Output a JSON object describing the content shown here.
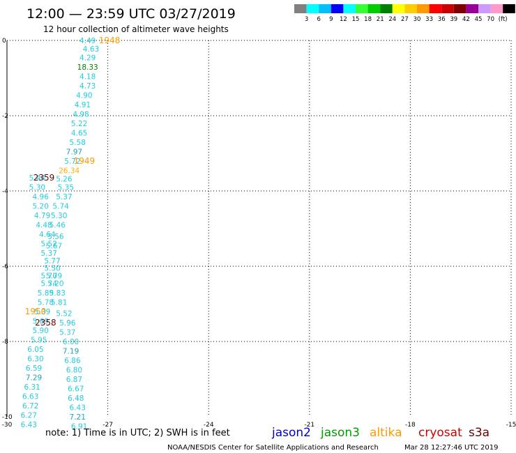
{
  "header": {
    "title": "12:00 — 23:59 UTC 03/27/2019",
    "subtitle": "12 hour collection of altimeter wave heights"
  },
  "legend": {
    "colors": [
      "#808080",
      "#00ffff",
      "#00bfff",
      "#0000ff",
      "#00ffff",
      "#33ff33",
      "#00cc00",
      "#008000",
      "#ffff00",
      "#ffcc00",
      "#ff9900",
      "#ff0000",
      "#cc0000",
      "#800000",
      "#990099",
      "#cc99ff",
      "#ff99cc",
      "#000000"
    ],
    "labels": [
      "3",
      "6",
      "9",
      "12",
      "15",
      "18",
      "21",
      "24",
      "27",
      "30",
      "33",
      "36",
      "39",
      "42",
      "45",
      "70",
      "(ft)"
    ]
  },
  "notes": {
    "note_text": "note: 1) Time is in UTC; 2) SWH is in feet",
    "satellites": [
      {
        "name": "jason2",
        "color": "#0000cc"
      },
      {
        "name": "jason3",
        "color": "#009900"
      },
      {
        "name": "altika",
        "color": "#ff9900"
      },
      {
        "name": "cryosat",
        "color": "#cc0000"
      },
      {
        "name": "s3a",
        "color": "#660000"
      }
    ],
    "footer_left": "NOAA/NESDIS Center for Satellite Applications and Research",
    "footer_right": "Mar 28 12:27:46 UTC 2019"
  },
  "chart_data": {
    "type": "scatter",
    "title": "12:00 — 23:59 UTC 03/27/2019",
    "subtitle": "12 hour collection of altimeter wave heights",
    "xlabel": "",
    "ylabel": "",
    "xlim": [
      -30,
      -15
    ],
    "ylim": [
      -10,
      0
    ],
    "x_ticks": [
      -30,
      -27,
      -24,
      -21,
      -18,
      -15
    ],
    "y_ticks": [
      0,
      -2,
      -4,
      -6,
      -8,
      -10
    ],
    "grid": true,
    "points": [
      {
        "x": -27.6,
        "y": 0.0,
        "v": "4.49",
        "color": "#22ccdd"
      },
      {
        "x": -27.5,
        "y": -0.22,
        "v": "4.63",
        "color": "#22ccdd"
      },
      {
        "x": -27.6,
        "y": -0.45,
        "v": "4.29",
        "color": "#22ccdd"
      },
      {
        "x": -27.6,
        "y": -0.7,
        "v": "18.33",
        "color": "#008000"
      },
      {
        "x": -27.6,
        "y": -0.95,
        "v": "4.18",
        "color": "#22ccdd"
      },
      {
        "x": -27.6,
        "y": -1.2,
        "v": "4.73",
        "color": "#22ccdd"
      },
      {
        "x": -27.7,
        "y": -1.45,
        "v": "4.90",
        "color": "#22ccdd"
      },
      {
        "x": -27.75,
        "y": -1.7,
        "v": "4.91",
        "color": "#22ccdd"
      },
      {
        "x": -27.8,
        "y": -1.95,
        "v": "4.98",
        "color": "#22ccdd"
      },
      {
        "x": -27.85,
        "y": -2.2,
        "v": "5.22",
        "color": "#22ccdd"
      },
      {
        "x": -27.85,
        "y": -2.45,
        "v": "4.65",
        "color": "#22ccdd"
      },
      {
        "x": -27.9,
        "y": -2.7,
        "v": "5.58",
        "color": "#22ccdd"
      },
      {
        "x": -28.0,
        "y": -2.95,
        "v": "7.97",
        "color": "#1aa3b8"
      },
      {
        "x": -28.05,
        "y": -3.2,
        "v": "5.72",
        "color": "#22ccdd"
      },
      {
        "x": -28.15,
        "y": -3.45,
        "v": "26.34",
        "color": "#ffaa00"
      },
      {
        "x": -29.1,
        "y": -3.65,
        "v": "5.44",
        "color": "#22ccdd"
      },
      {
        "x": -28.3,
        "y": -3.68,
        "v": "5.26",
        "color": "#22ccdd"
      },
      {
        "x": -29.1,
        "y": -3.9,
        "v": "5.30",
        "color": "#22ccdd"
      },
      {
        "x": -28.25,
        "y": -3.9,
        "v": "5.35",
        "color": "#22ccdd"
      },
      {
        "x": -29.0,
        "y": -4.15,
        "v": "4.96",
        "color": "#22ccdd"
      },
      {
        "x": -28.3,
        "y": -4.15,
        "v": "5.37",
        "color": "#22ccdd"
      },
      {
        "x": -29.0,
        "y": -4.4,
        "v": "5.20",
        "color": "#22ccdd"
      },
      {
        "x": -28.4,
        "y": -4.4,
        "v": "5.74",
        "color": "#22ccdd"
      },
      {
        "x": -28.95,
        "y": -4.65,
        "v": "4.79",
        "color": "#22ccdd"
      },
      {
        "x": -28.45,
        "y": -4.65,
        "v": "5.30",
        "color": "#22ccdd"
      },
      {
        "x": -28.9,
        "y": -4.9,
        "v": "4.48",
        "color": "#22ccdd"
      },
      {
        "x": -28.5,
        "y": -4.9,
        "v": "5.46",
        "color": "#22ccdd"
      },
      {
        "x": -28.8,
        "y": -5.15,
        "v": "4.64",
        "color": "#22ccdd"
      },
      {
        "x": -28.55,
        "y": -5.2,
        "v": "5.56",
        "color": "#22ccdd"
      },
      {
        "x": -28.75,
        "y": -5.4,
        "v": "5.52",
        "color": "#22ccdd"
      },
      {
        "x": -28.6,
        "y": -5.45,
        "v": "5.67",
        "color": "#22ccdd"
      },
      {
        "x": -28.75,
        "y": -5.65,
        "v": "5.37",
        "color": "#22ccdd"
      },
      {
        "x": -28.65,
        "y": -5.85,
        "v": "5.77",
        "color": "#22ccdd"
      },
      {
        "x": -28.65,
        "y": -6.05,
        "v": "5.50",
        "color": "#22ccdd"
      },
      {
        "x": -28.75,
        "y": -6.25,
        "v": "5.70",
        "color": "#22ccdd"
      },
      {
        "x": -28.6,
        "y": -6.25,
        "v": "5.79",
        "color": "#22ccdd"
      },
      {
        "x": -28.75,
        "y": -6.45,
        "v": "5.74",
        "color": "#22ccdd"
      },
      {
        "x": -28.55,
        "y": -6.45,
        "v": "5.20",
        "color": "#22ccdd"
      },
      {
        "x": -28.85,
        "y": -6.7,
        "v": "5.89",
        "color": "#22ccdd"
      },
      {
        "x": -28.5,
        "y": -6.7,
        "v": "5.83",
        "color": "#22ccdd"
      },
      {
        "x": -28.85,
        "y": -6.95,
        "v": "5.78",
        "color": "#22ccdd"
      },
      {
        "x": -28.45,
        "y": -6.95,
        "v": "5.81",
        "color": "#22ccdd"
      },
      {
        "x": -28.95,
        "y": -7.2,
        "v": "5.39",
        "color": "#22ccdd"
      },
      {
        "x": -28.3,
        "y": -7.25,
        "v": "5.52",
        "color": "#22ccdd"
      },
      {
        "x": -29.0,
        "y": -7.45,
        "v": "5.69",
        "color": "#22ccdd"
      },
      {
        "x": -28.2,
        "y": -7.5,
        "v": "5.96",
        "color": "#22ccdd"
      },
      {
        "x": -29.0,
        "y": -7.7,
        "v": "5.90",
        "color": "#22ccdd"
      },
      {
        "x": -28.2,
        "y": -7.75,
        "v": "5.37",
        "color": "#22ccdd"
      },
      {
        "x": -29.05,
        "y": -7.95,
        "v": "5.95",
        "color": "#22ccdd"
      },
      {
        "x": -28.1,
        "y": -8.0,
        "v": "6.00",
        "color": "#22ccdd"
      },
      {
        "x": -29.15,
        "y": -8.2,
        "v": "6.05",
        "color": "#22ccdd"
      },
      {
        "x": -28.1,
        "y": -8.25,
        "v": "7.19",
        "color": "#1aa3b8"
      },
      {
        "x": -29.15,
        "y": -8.45,
        "v": "6.30",
        "color": "#22ccdd"
      },
      {
        "x": -28.05,
        "y": -8.5,
        "v": "6.86",
        "color": "#22ccdd"
      },
      {
        "x": -29.2,
        "y": -8.7,
        "v": "6.59",
        "color": "#22ccdd"
      },
      {
        "x": -28.0,
        "y": -8.75,
        "v": "6.80",
        "color": "#22ccdd"
      },
      {
        "x": -29.2,
        "y": -8.95,
        "v": "7.29",
        "color": "#1aa3b8"
      },
      {
        "x": -28.0,
        "y": -9.0,
        "v": "6.87",
        "color": "#22ccdd"
      },
      {
        "x": -29.25,
        "y": -9.2,
        "v": "6.31",
        "color": "#22ccdd"
      },
      {
        "x": -27.95,
        "y": -9.25,
        "v": "6.67",
        "color": "#22ccdd"
      },
      {
        "x": -29.3,
        "y": -9.45,
        "v": "6.63",
        "color": "#22ccdd"
      },
      {
        "x": -27.95,
        "y": -9.5,
        "v": "6.48",
        "color": "#22ccdd"
      },
      {
        "x": -29.3,
        "y": -9.7,
        "v": "6.72",
        "color": "#22ccdd"
      },
      {
        "x": -27.9,
        "y": -9.75,
        "v": "6.43",
        "color": "#22ccdd"
      },
      {
        "x": -29.35,
        "y": -9.95,
        "v": "6.27",
        "color": "#22ccdd"
      },
      {
        "x": -27.9,
        "y": -10.0,
        "v": "7.21",
        "color": "#1aa3b8"
      },
      {
        "x": -29.35,
        "y": -10.2,
        "v": "6.43",
        "color": "#22ccdd"
      },
      {
        "x": -27.85,
        "y": -10.25,
        "v": "6.91",
        "color": "#22ccdd"
      }
    ],
    "time_labels": [
      {
        "x": -26.95,
        "y": 0.0,
        "t": "1948",
        "color": "#ff9900"
      },
      {
        "x": -27.7,
        "y": -3.2,
        "t": "1949",
        "color": "#ff9900"
      },
      {
        "x": -28.9,
        "y": -3.65,
        "t": "2359",
        "color": "#660000"
      },
      {
        "x": -29.15,
        "y": -7.2,
        "t": "1950",
        "color": "#ff9900"
      },
      {
        "x": -28.85,
        "y": -7.5,
        "t": "2358",
        "color": "#660000"
      }
    ]
  }
}
